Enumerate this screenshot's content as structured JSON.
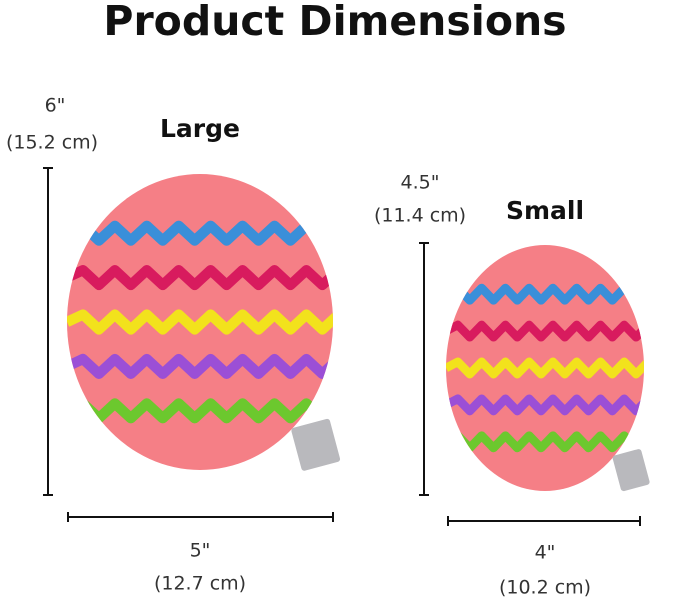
{
  "title": "Product Dimensions",
  "products": [
    {
      "label": "Large",
      "height": "6\"",
      "height_metric": "(15.2 cm)",
      "width": "5\"",
      "width_metric": "(12.7 cm)"
    },
    {
      "label": "Small",
      "height": "4.5\"",
      "height_metric": "(11.4 cm)",
      "width": "4\"",
      "width_metric": "(10.2 cm)"
    }
  ]
}
